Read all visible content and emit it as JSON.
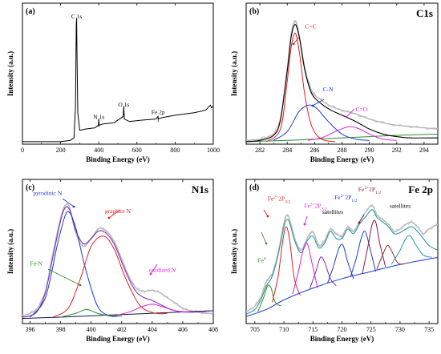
{
  "chart_data": [
    {
      "panel": "(a)",
      "type": "line",
      "xlabel": "Binding Energy (eV)",
      "ylabel": "Intensity (a.u.)",
      "xlim": [
        0,
        1000
      ],
      "xticks": [
        "0",
        "200",
        "400",
        "600",
        "800",
        "1000"
      ],
      "series": [
        {
          "color": "#000000",
          "x": [
            0,
            100,
            200,
            250,
            270,
            278,
            282,
            284,
            286,
            290,
            300,
            330,
            380,
            398,
            400,
            402,
            420,
            480,
            528,
            531,
            534,
            560,
            620,
            700,
            710,
            712,
            730,
            800,
            900,
            960,
            985,
            990,
            1000
          ],
          "y": [
            0.02,
            0.02,
            0.02,
            0.03,
            0.05,
            0.3,
            0.95,
            1.0,
            0.7,
            0.25,
            0.11,
            0.12,
            0.13,
            0.15,
            0.2,
            0.15,
            0.16,
            0.17,
            0.22,
            0.3,
            0.2,
            0.18,
            0.19,
            0.2,
            0.22,
            0.2,
            0.21,
            0.23,
            0.25,
            0.27,
            0.31,
            0.29,
            0.3
          ]
        }
      ],
      "annotations": [
        {
          "text": "C 1s",
          "x": 284,
          "y": 1.0
        },
        {
          "text": "N 1s",
          "x": 400,
          "y": 0.2
        },
        {
          "text": "O 1s",
          "x": 531,
          "y": 0.3
        },
        {
          "text": "Fe 2p",
          "x": 711,
          "y": 0.24
        }
      ]
    },
    {
      "panel": "(b)",
      "type": "line",
      "title": "C1s",
      "xlabel": "Binding Energy (eV)",
      "ylabel": "Intensity (a.u.)",
      "xlim": [
        281,
        295
      ],
      "xticks": [
        "282",
        "284",
        "286",
        "288",
        "290",
        "292",
        "294"
      ],
      "series": [
        {
          "role": "raw",
          "color": "#b8b8b8",
          "x": [
            281,
            282,
            283,
            283.5,
            284,
            284.3,
            284.6,
            284.9,
            285.3,
            285.8,
            286.5,
            287.2,
            288,
            289,
            290,
            291,
            292,
            293,
            294,
            295
          ],
          "y": [
            0.03,
            0.04,
            0.08,
            0.2,
            0.6,
            0.88,
            0.98,
            0.85,
            0.6,
            0.42,
            0.35,
            0.3,
            0.27,
            0.24,
            0.2,
            0.17,
            0.15,
            0.14,
            0.13,
            0.12
          ]
        },
        {
          "role": "baseline",
          "color": "#2e8b2e",
          "x": [
            281,
            284,
            286,
            288,
            290,
            292,
            295
          ],
          "y": [
            0.02,
            0.03,
            0.04,
            0.05,
            0.06,
            0.07,
            0.08
          ]
        },
        {
          "role": "fit",
          "color": "#000000",
          "x": [
            281,
            282,
            283,
            283.5,
            284,
            284.3,
            284.6,
            284.9,
            285.3,
            285.8,
            286.5,
            287.2,
            288,
            289,
            290,
            291,
            292,
            293,
            295
          ],
          "y": [
            0.02,
            0.03,
            0.07,
            0.19,
            0.58,
            0.86,
            0.95,
            0.84,
            0.58,
            0.4,
            0.32,
            0.27,
            0.23,
            0.18,
            0.12,
            0.08,
            0.06,
            0.05,
            0.05
          ]
        },
        {
          "role": "peak",
          "name": "C=C",
          "color": "#e02020",
          "x": [
            282.5,
            283.5,
            284,
            284.3,
            284.6,
            284.9,
            285.3,
            285.8,
            286.5,
            287.5
          ],
          "y": [
            0.02,
            0.12,
            0.5,
            0.78,
            0.88,
            0.72,
            0.38,
            0.14,
            0.04,
            0.02
          ]
        },
        {
          "role": "peak",
          "name": "C-N",
          "color": "#1c3ad6",
          "x": [
            283,
            284,
            284.8,
            285.3,
            285.7,
            286.2,
            287,
            288,
            289,
            290
          ],
          "y": [
            0.03,
            0.1,
            0.25,
            0.3,
            0.31,
            0.28,
            0.18,
            0.08,
            0.04,
            0.03
          ]
        },
        {
          "role": "peak",
          "name": "C=O",
          "color": "#e020e0",
          "x": [
            285.5,
            286.5,
            287.5,
            288.2,
            288.7,
            289.3,
            290.2,
            291,
            292
          ],
          "y": [
            0.03,
            0.05,
            0.1,
            0.13,
            0.14,
            0.12,
            0.07,
            0.04,
            0.03
          ]
        }
      ],
      "annotations": [
        {
          "text": "C=C",
          "x": 285.3,
          "y": 0.92,
          "color": "#e02020"
        },
        {
          "text": "C-N",
          "x": 286.6,
          "y": 0.42,
          "color": "#1c3ad6"
        },
        {
          "text": "C=O",
          "x": 289.0,
          "y": 0.26,
          "color": "#e020e0"
        }
      ]
    },
    {
      "panel": "(c)",
      "type": "line",
      "title": "N1s",
      "xlabel": "Binding Energy (eV)",
      "ylabel": "Intensity (a.u.)",
      "xlim": [
        395.5,
        408
      ],
      "xticks": [
        "396",
        "398",
        "400",
        "402",
        "404",
        "406",
        "408"
      ],
      "series": [
        {
          "role": "raw",
          "color": "#b8b8b8",
          "x": [
            395.5,
            396,
            396.5,
            397,
            397.5,
            398,
            398.3,
            398.6,
            399,
            399.5,
            400,
            400.5,
            401,
            401.5,
            402,
            402.5,
            403,
            403.5,
            404,
            404.5,
            405,
            405.5,
            406,
            406.5,
            407,
            407.5,
            408
          ],
          "y": [
            0.06,
            0.08,
            0.12,
            0.25,
            0.55,
            0.82,
            0.92,
            0.9,
            0.7,
            0.6,
            0.66,
            0.74,
            0.72,
            0.64,
            0.5,
            0.36,
            0.27,
            0.25,
            0.26,
            0.24,
            0.2,
            0.16,
            0.12,
            0.1,
            0.09,
            0.08,
            0.08
          ]
        },
        {
          "role": "baseline",
          "color": "#0c1a4a",
          "x": [
            395.5,
            398,
            400,
            402,
            404,
            406,
            408
          ],
          "y": [
            0.04,
            0.05,
            0.06,
            0.07,
            0.08,
            0.09,
            0.1
          ]
        },
        {
          "role": "fit",
          "color": "#7b30c0",
          "x": [
            395.5,
            396,
            396.5,
            397,
            397.5,
            398,
            398.3,
            398.6,
            399,
            399.5,
            400,
            400.5,
            401,
            401.5,
            402,
            402.5,
            403,
            403.5,
            404,
            404.5,
            405,
            405.5,
            406,
            407,
            408
          ],
          "y": [
            0.05,
            0.06,
            0.1,
            0.24,
            0.52,
            0.8,
            0.9,
            0.88,
            0.72,
            0.62,
            0.66,
            0.72,
            0.7,
            0.62,
            0.48,
            0.34,
            0.24,
            0.2,
            0.18,
            0.15,
            0.12,
            0.1,
            0.09,
            0.09,
            0.1
          ]
        },
        {
          "role": "peak",
          "name": "pyrodinic N",
          "color": "#1c3ad6",
          "x": [
            396,
            397,
            397.8,
            398.3,
            398.6,
            399,
            399.6,
            400.4,
            401.2,
            402
          ],
          "y": [
            0.05,
            0.2,
            0.62,
            0.84,
            0.86,
            0.74,
            0.44,
            0.14,
            0.06,
            0.06
          ]
        },
        {
          "role": "peak",
          "name": "graphire N",
          "color": "#e02020",
          "x": [
            397.5,
            398.5,
            399.3,
            400,
            400.8,
            401.5,
            402.3,
            403.2,
            404.2,
            405
          ],
          "y": [
            0.05,
            0.12,
            0.35,
            0.6,
            0.68,
            0.58,
            0.34,
            0.14,
            0.08,
            0.08
          ]
        },
        {
          "role": "peak",
          "name": "Fe-N",
          "color": "#2e8b2e",
          "x": [
            398,
            399,
            399.7,
            400.4,
            401.2,
            402
          ],
          "y": [
            0.05,
            0.08,
            0.11,
            0.08,
            0.06,
            0.06
          ]
        },
        {
          "role": "peak",
          "name": "oxidized N",
          "color": "#e020e0",
          "x": [
            401.5,
            402.5,
            403.3,
            404,
            404.7,
            405.5,
            406.5
          ],
          "y": [
            0.06,
            0.09,
            0.13,
            0.15,
            0.13,
            0.1,
            0.09
          ]
        }
      ],
      "annotations": [
        {
          "text": "pyrodinic N",
          "x": 396.2,
          "y": 1.0,
          "color": "#1c3ad6"
        },
        {
          "text": "graphire N",
          "x": 400.9,
          "y": 0.86,
          "color": "#e02020"
        },
        {
          "text": "Fe-N",
          "x": 396.0,
          "y": 0.45,
          "color": "#2e8b2e"
        },
        {
          "text": "oxidized N",
          "x": 403.8,
          "y": 0.4,
          "color": "#e020e0"
        }
      ]
    },
    {
      "panel": "(d)",
      "type": "line",
      "title": "Fe 2p",
      "xlabel": "Binding Energy (eV)",
      "ylabel": "Intensity (a.u.)",
      "xlim": [
        703.5,
        736.5
      ],
      "xticks": [
        "705",
        "710",
        "715",
        "720",
        "725",
        "730",
        "735"
      ],
      "series": [
        {
          "role": "raw",
          "color": "#b8b8b8",
          "x": [
            703.5,
            705,
            706,
            707,
            708,
            709,
            710,
            710.5,
            711,
            712,
            713,
            714,
            715,
            716,
            717,
            718,
            719,
            720,
            721,
            722,
            723,
            724,
            725,
            725.5,
            726,
            727,
            728,
            729,
            730,
            731,
            732,
            733,
            734,
            735,
            736.5
          ],
          "y": [
            0.1,
            0.15,
            0.22,
            0.36,
            0.42,
            0.6,
            0.85,
            0.92,
            0.88,
            0.7,
            0.62,
            0.72,
            0.78,
            0.66,
            0.7,
            0.8,
            0.76,
            0.74,
            0.82,
            0.78,
            0.86,
            0.94,
            1.0,
            0.98,
            0.92,
            0.88,
            0.84,
            0.78,
            0.8,
            0.84,
            0.86,
            0.82,
            0.76,
            0.8,
            0.84
          ]
        },
        {
          "role": "baseline",
          "color": "#1c3ad6",
          "x": [
            703.5,
            707,
            710,
            715,
            720,
            725,
            730,
            736.5
          ],
          "y": [
            0.06,
            0.12,
            0.2,
            0.3,
            0.38,
            0.44,
            0.5,
            0.56
          ]
        },
        {
          "role": "fit",
          "color": "#2a9aa0",
          "x": [
            703.5,
            705,
            706,
            707,
            708,
            709,
            710,
            710.5,
            711,
            712,
            713,
            714,
            715,
            716,
            717,
            718,
            719,
            720,
            721,
            722,
            723,
            724,
            725,
            725.5,
            726,
            727,
            728,
            729,
            730,
            731,
            732,
            733,
            734,
            735,
            736.5
          ],
          "y": [
            0.08,
            0.12,
            0.2,
            0.32,
            0.4,
            0.58,
            0.82,
            0.88,
            0.85,
            0.68,
            0.6,
            0.7,
            0.74,
            0.64,
            0.68,
            0.78,
            0.72,
            0.72,
            0.8,
            0.76,
            0.84,
            0.9,
            0.96,
            0.95,
            0.9,
            0.86,
            0.82,
            0.76,
            0.77,
            0.8,
            0.82,
            0.78,
            0.72,
            0.66,
            0.62
          ]
        },
        {
          "role": "peak",
          "name": "Fe0",
          "color": "#2e8b2e",
          "x": [
            705.5,
            706.5,
            707.2,
            707.8,
            708.5,
            709.5
          ],
          "y": [
            0.1,
            0.22,
            0.32,
            0.3,
            0.18,
            0.15
          ]
        },
        {
          "role": "peak",
          "name": "Fe2+ 2p3/2",
          "color": "#e02020",
          "x": [
            708,
            709,
            709.8,
            710.4,
            711,
            711.8,
            712.8
          ],
          "y": [
            0.18,
            0.4,
            0.7,
            0.82,
            0.7,
            0.38,
            0.24
          ]
        },
        {
          "role": "peak",
          "name": "Fe3+ 2p3/2",
          "color": "#e020e0",
          "x": [
            711.5,
            712.5,
            713.3,
            714,
            714.8,
            715.8
          ],
          "y": [
            0.25,
            0.44,
            0.62,
            0.68,
            0.52,
            0.3
          ]
        },
        {
          "role": "peak",
          "name": "satellites",
          "color": "#7b30c0",
          "x": [
            714.5,
            715.5,
            716.3,
            717,
            718,
            719
          ],
          "y": [
            0.3,
            0.44,
            0.56,
            0.52,
            0.38,
            0.32
          ]
        },
        {
          "role": "peak",
          "name": "satellites",
          "color": "#1c3ad6",
          "x": [
            717.5,
            718.5,
            719.5,
            720.2,
            721,
            722
          ],
          "y": [
            0.34,
            0.48,
            0.64,
            0.66,
            0.52,
            0.38
          ]
        },
        {
          "role": "peak",
          "name": "Fe2+ 2p1/2",
          "color": "#1c3ad6",
          "x": [
            721.5,
            722.5,
            723.3,
            724,
            724.8,
            725.8
          ],
          "y": [
            0.4,
            0.56,
            0.72,
            0.78,
            0.64,
            0.44
          ]
        },
        {
          "role": "peak",
          "name": "Fe3+ 2p1/2",
          "color": "#8b1a4a",
          "x": [
            723.5,
            724.5,
            725.2,
            725.8,
            726.5,
            727.5
          ],
          "y": [
            0.42,
            0.66,
            0.84,
            0.86,
            0.68,
            0.48
          ]
        },
        {
          "role": "peak",
          "name": "satellites",
          "color": "#8b3030",
          "x": [
            726,
            727,
            727.8,
            728.5,
            729.5,
            730.5
          ],
          "y": [
            0.46,
            0.58,
            0.66,
            0.62,
            0.52,
            0.5
          ]
        },
        {
          "role": "peak",
          "name": "satellites",
          "color": "#2a9aa0",
          "x": [
            728.5,
            730,
            731,
            731.8,
            732.8,
            734,
            735.5
          ],
          "y": [
            0.5,
            0.62,
            0.72,
            0.74,
            0.66,
            0.58,
            0.56
          ]
        }
      ],
      "annotations": [
        {
          "text": "Fe",
          "sup": "0",
          "x": 705.5,
          "y": 0.52,
          "color": "#2e8b2e"
        },
        {
          "text": "Fe",
          "sup": "2+",
          "rest": "2P",
          "sub": "3/2",
          "x": 707.2,
          "y": 1.04,
          "color": "#e02020"
        },
        {
          "text": "Fe",
          "sup": "3+",
          "rest": "2P",
          "sub": "3/2",
          "x": 713.5,
          "y": 0.98,
          "color": "#e020e0"
        },
        {
          "text": "satellites",
          "x": 716.6,
          "y": 0.93,
          "color": "#000000"
        },
        {
          "text": "Fe",
          "sup": "2+",
          "rest": "2P",
          "sub": "1/2",
          "x": 718.7,
          "y": 1.05,
          "color": "#1c3ad6"
        },
        {
          "text": "Fe",
          "sup": "3+",
          "rest": "2P",
          "sub": "1/2",
          "x": 722.8,
          "y": 1.12,
          "color": "#8b1a4a"
        },
        {
          "text": "satellites",
          "x": 728.2,
          "y": 0.98,
          "color": "#000000"
        }
      ]
    }
  ]
}
